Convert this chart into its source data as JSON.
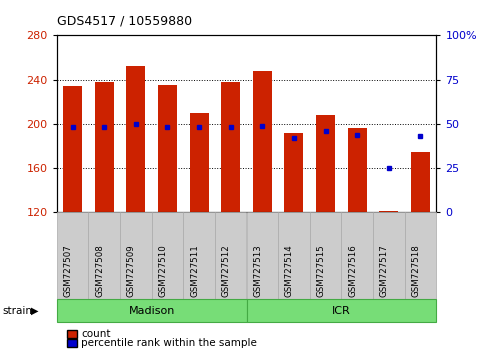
{
  "title": "GDS4517 / 10559880",
  "samples": [
    "GSM727507",
    "GSM727508",
    "GSM727509",
    "GSM727510",
    "GSM727511",
    "GSM727512",
    "GSM727513",
    "GSM727514",
    "GSM727515",
    "GSM727516",
    "GSM727517",
    "GSM727518"
  ],
  "counts": [
    234,
    238,
    252,
    235,
    210,
    238,
    248,
    192,
    208,
    196,
    121,
    175
  ],
  "percentiles": [
    48,
    48,
    50,
    48,
    48,
    48,
    49,
    42,
    46,
    44,
    25,
    43
  ],
  "ymin": 120,
  "ymax": 280,
  "yticks_left": [
    120,
    160,
    200,
    240,
    280
  ],
  "yticks_right": [
    0,
    25,
    50,
    75,
    100
  ],
  "bar_color": "#cc2200",
  "marker_color": "#0000cc",
  "madison_group": [
    0,
    1,
    2,
    3,
    4,
    5
  ],
  "icr_group": [
    6,
    7,
    8,
    9,
    10,
    11
  ],
  "group_color": "#77dd77",
  "group_edge_color": "#44aa44",
  "strain_label": "strain",
  "legend_count": "count",
  "legend_pct": "percentile rank within the sample",
  "left_tick_color": "#cc2200",
  "right_tick_color": "#0000cc",
  "xtick_bg_color": "#cccccc",
  "xtick_border_color": "#aaaaaa"
}
